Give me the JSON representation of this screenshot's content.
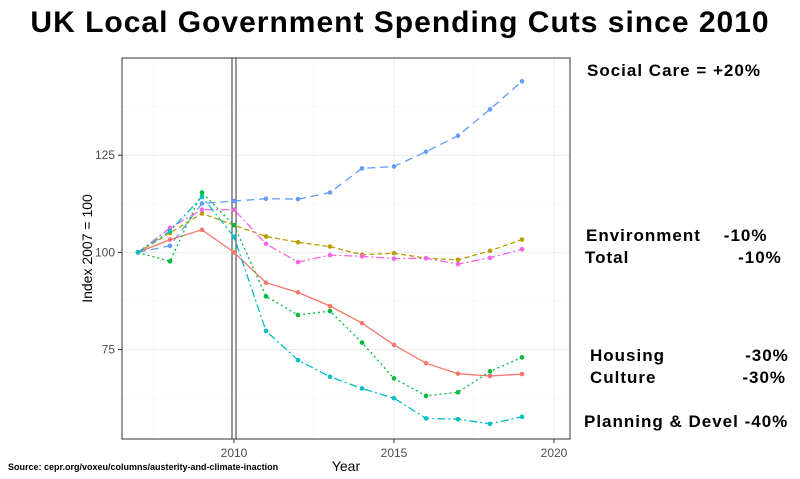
{
  "chart_data": {
    "type": "line",
    "title": "UK Local Government Spending Cuts since 2010",
    "xlabel": "Year",
    "ylabel": "Index 2007 = 100",
    "xlim": [
      2006.5,
      2020.5
    ],
    "ylim": [
      52,
      150
    ],
    "x_ticks": [
      "2010",
      "2015",
      "2020"
    ],
    "y_ticks": [
      "75",
      "100",
      "125"
    ],
    "x": [
      2007,
      2008,
      2009,
      2010,
      2011,
      2012,
      2013,
      2014,
      2015,
      2016,
      2017,
      2018,
      2019
    ],
    "reference_line_x": 2010,
    "series": [
      {
        "name": "Social Care",
        "color": "#619CFF",
        "dash": "8,5",
        "values": [
          100,
          101.7,
          112.6,
          113.2,
          113.8,
          113.7,
          115.4,
          121.6,
          122.1,
          125.9,
          130,
          136.8,
          144
        ]
      },
      {
        "name": "Environment",
        "color": "#B79F00",
        "dash": "5,3",
        "values": [
          100,
          105,
          110,
          107,
          104.1,
          102.6,
          101.5,
          99.4,
          99.8,
          98.5,
          98.1,
          100.4,
          103.3
        ]
      },
      {
        "name": "Planning & Devel",
        "color": "#F564E3",
        "dash": "8,3,2,3",
        "values": [
          100,
          106.3,
          111,
          111,
          102.2,
          97.5,
          99.3,
          99,
          98.4,
          98.5,
          97,
          98.6,
          100.8
        ]
      },
      {
        "name": "Total",
        "color": "#F8766D",
        "dash": "",
        "values": [
          100,
          103.3,
          105.8,
          100,
          92.2,
          89.7,
          86.2,
          81.8,
          76.2,
          71.5,
          68.8,
          68.2,
          68.7
        ]
      },
      {
        "name": "Housing",
        "color": "#00BA38",
        "dash": "2,3",
        "values": [
          100,
          97.7,
          115.4,
          107,
          88.7,
          83.9,
          84.9,
          76.8,
          67.6,
          63.1,
          64,
          69.4,
          73
        ]
      },
      {
        "name": "Culture",
        "color": "#00BFC4",
        "dash": "8,3,2,3",
        "values": [
          100,
          105.5,
          114.3,
          104,
          79.8,
          72.3,
          68,
          65,
          62.5,
          57.3,
          57.1,
          55.9,
          57.7
        ]
      }
    ],
    "annotations": [
      {
        "key": "social_care",
        "text": "Social Care = +20%"
      },
      {
        "key": "environment",
        "text": "Environment    -10%"
      },
      {
        "key": "total",
        "text": "Total                   -10%"
      },
      {
        "key": "housing",
        "text": "Housing              -30%"
      },
      {
        "key": "culture",
        "text": "Culture               -30%"
      },
      {
        "key": "planning",
        "text": "Planning & Devel -40%"
      }
    ],
    "source": "Source: cepr.org/voxeu/columns/austerity-and-climate-inaction"
  }
}
